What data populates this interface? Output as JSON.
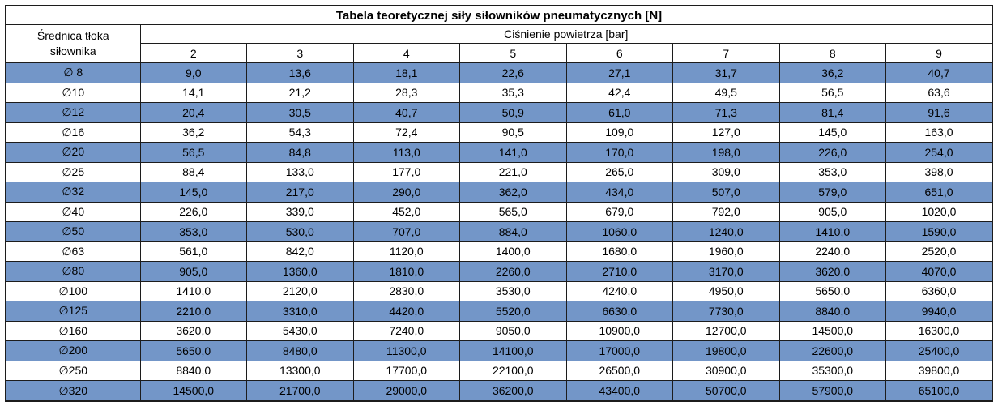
{
  "table": {
    "title": "Tabela teoretycznej siły siłowników pneumatycznych [N]",
    "row_header_line1": "Średnica tłoka",
    "row_header_line2": "siłownika",
    "col_group": "Ciśnienie powietrza [bar]",
    "pressures": [
      "2",
      "3",
      "4",
      "5",
      "6",
      "7",
      "8",
      "9"
    ],
    "rows": [
      {
        "diameter": "∅ 8",
        "values": [
          "9,0",
          "13,6",
          "18,1",
          "22,6",
          "27,1",
          "31,7",
          "36,2",
          "40,7"
        ]
      },
      {
        "diameter": "∅10",
        "values": [
          "14,1",
          "21,2",
          "28,3",
          "35,3",
          "42,4",
          "49,5",
          "56,5",
          "63,6"
        ]
      },
      {
        "diameter": "∅12",
        "values": [
          "20,4",
          "30,5",
          "40,7",
          "50,9",
          "61,0",
          "71,3",
          "81,4",
          "91,6"
        ]
      },
      {
        "diameter": "∅16",
        "values": [
          "36,2",
          "54,3",
          "72,4",
          "90,5",
          "109,0",
          "127,0",
          "145,0",
          "163,0"
        ]
      },
      {
        "diameter": "∅20",
        "values": [
          "56,5",
          "84,8",
          "113,0",
          "141,0",
          "170,0",
          "198,0",
          "226,0",
          "254,0"
        ]
      },
      {
        "diameter": "∅25",
        "values": [
          "88,4",
          "133,0",
          "177,0",
          "221,0",
          "265,0",
          "309,0",
          "353,0",
          "398,0"
        ]
      },
      {
        "diameter": "∅32",
        "values": [
          "145,0",
          "217,0",
          "290,0",
          "362,0",
          "434,0",
          "507,0",
          "579,0",
          "651,0"
        ]
      },
      {
        "diameter": "∅40",
        "values": [
          "226,0",
          "339,0",
          "452,0",
          "565,0",
          "679,0",
          "792,0",
          "905,0",
          "1020,0"
        ]
      },
      {
        "diameter": "∅50",
        "values": [
          "353,0",
          "530,0",
          "707,0",
          "884,0",
          "1060,0",
          "1240,0",
          "1410,0",
          "1590,0"
        ]
      },
      {
        "diameter": "∅63",
        "values": [
          "561,0",
          "842,0",
          "1120,0",
          "1400,0",
          "1680,0",
          "1960,0",
          "2240,0",
          "2520,0"
        ]
      },
      {
        "diameter": "∅80",
        "values": [
          "905,0",
          "1360,0",
          "1810,0",
          "2260,0",
          "2710,0",
          "3170,0",
          "3620,0",
          "4070,0"
        ]
      },
      {
        "diameter": "∅100",
        "values": [
          "1410,0",
          "2120,0",
          "2830,0",
          "3530,0",
          "4240,0",
          "4950,0",
          "5650,0",
          "6360,0"
        ]
      },
      {
        "diameter": "∅125",
        "values": [
          "2210,0",
          "3310,0",
          "4420,0",
          "5520,0",
          "6630,0",
          "7730,0",
          "8840,0",
          "9940,0"
        ]
      },
      {
        "diameter": "∅160",
        "values": [
          "3620,0",
          "5430,0",
          "7240,0",
          "9050,0",
          "10900,0",
          "12700,0",
          "14500,0",
          "16300,0"
        ]
      },
      {
        "diameter": "∅200",
        "values": [
          "5650,0",
          "8480,0",
          "11300,0",
          "14100,0",
          "17000,0",
          "19800,0",
          "22600,0",
          "25400,0"
        ]
      },
      {
        "diameter": "∅250",
        "values": [
          "8840,0",
          "13300,0",
          "17700,0",
          "22100,0",
          "26500,0",
          "30900,0",
          "35300,0",
          "39800,0"
        ]
      },
      {
        "diameter": "∅320",
        "values": [
          "14500,0",
          "21700,0",
          "29000,0",
          "36200,0",
          "43400,0",
          "50700,0",
          "57900,0",
          "65100,0"
        ]
      }
    ],
    "colors": {
      "stripe_blue": "#7396C8",
      "row_white": "#FFFFFF",
      "border": "#1C1C1C",
      "text": "#000000"
    }
  }
}
